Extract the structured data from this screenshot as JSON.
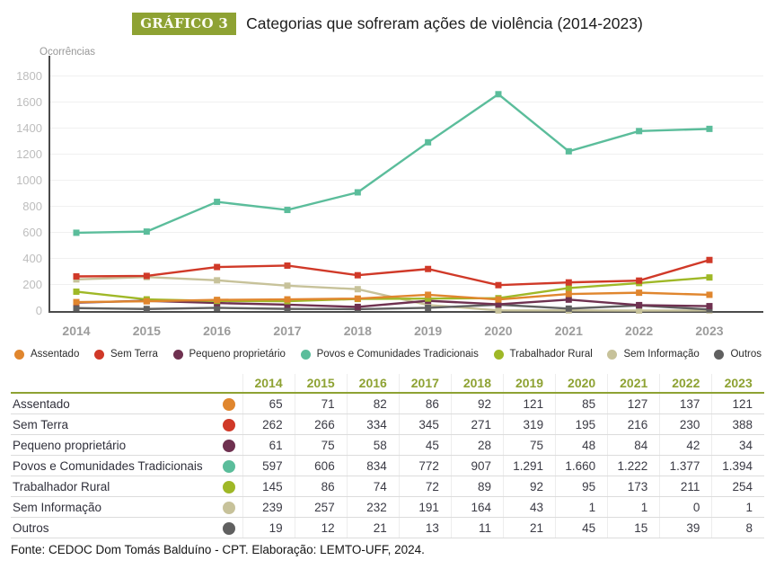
{
  "header": {
    "badge": "GRÁFICO 3",
    "title": "Categorias que sofreram ações de violência (2014-2023)"
  },
  "chart_data": {
    "type": "line",
    "title": "Categorias que sofreram ações de violência (2014-2023)",
    "ylabel": "Ocorrências",
    "xlabel": "",
    "x_categories": [
      "2014",
      "2015",
      "2016",
      "2017",
      "2018",
      "2019",
      "2020",
      "2021",
      "2022",
      "2023"
    ],
    "ylim": [
      0,
      1800
    ],
    "ytick_step": 200,
    "grid": "horizontal",
    "legend_position": "bottom",
    "marker": "square",
    "series": [
      {
        "name": "Assentado",
        "slug": "assentado",
        "color": "#E0862E",
        "values": [
          65,
          71,
          82,
          86,
          92,
          121,
          85,
          127,
          137,
          121
        ]
      },
      {
        "name": "Sem Terra",
        "slug": "sem-terra",
        "color": "#D03928",
        "values": [
          262,
          266,
          334,
          345,
          271,
          319,
          195,
          216,
          230,
          388
        ]
      },
      {
        "name": "Pequeno proprietário",
        "slug": "pequeno-proprietario",
        "color": "#6F3150",
        "values": [
          61,
          75,
          58,
          45,
          28,
          75,
          48,
          84,
          42,
          34
        ]
      },
      {
        "name": "Povos e Comunidades Tradicionais",
        "slug": "povos-e-comunidades-tradicionais",
        "color": "#5BBD9B",
        "values": [
          597,
          606,
          834,
          772,
          907,
          1291,
          1660,
          1222,
          1377,
          1394
        ]
      },
      {
        "name": "Trabalhador Rural",
        "slug": "trabalhador-rural",
        "color": "#9FB827",
        "values": [
          145,
          86,
          74,
          72,
          89,
          92,
          95,
          173,
          211,
          254
        ]
      },
      {
        "name": "Sem Informação",
        "slug": "sem-informacao",
        "color": "#C7C29A",
        "values": [
          239,
          257,
          232,
          191,
          164,
          43,
          1,
          1,
          0,
          1
        ]
      },
      {
        "name": "Outros",
        "slug": "outros",
        "color": "#606060",
        "values": [
          19,
          12,
          21,
          13,
          11,
          21,
          45,
          15,
          39,
          8
        ]
      }
    ],
    "draw_order": [
      5,
      6,
      2,
      4,
      0,
      1,
      3
    ]
  },
  "table": {
    "year_columns": [
      "2014",
      "2015",
      "2016",
      "2017",
      "2018",
      "2019",
      "2020",
      "2021",
      "2022",
      "2023"
    ],
    "rows": [
      {
        "label": "Assentado",
        "color": "#E0862E",
        "values": [
          "65",
          "71",
          "82",
          "86",
          "92",
          "121",
          "85",
          "127",
          "137",
          "121"
        ]
      },
      {
        "label": "Sem Terra",
        "color": "#D03928",
        "values": [
          "262",
          "266",
          "334",
          "345",
          "271",
          "319",
          "195",
          "216",
          "230",
          "388"
        ]
      },
      {
        "label": "Pequeno proprietário",
        "color": "#6F3150",
        "values": [
          "61",
          "75",
          "58",
          "45",
          "28",
          "75",
          "48",
          "84",
          "42",
          "34"
        ]
      },
      {
        "label": "Povos e Comunidades Tradicionais",
        "color": "#5BBD9B",
        "values": [
          "597",
          "606",
          "834",
          "772",
          "907",
          "1.291",
          "1.660",
          "1.222",
          "1.377",
          "1.394"
        ]
      },
      {
        "label": "Trabalhador Rural",
        "color": "#9FB827",
        "values": [
          "145",
          "86",
          "74",
          "72",
          "89",
          "92",
          "95",
          "173",
          "211",
          "254"
        ]
      },
      {
        "label": "Sem Informação",
        "color": "#C7C29A",
        "values": [
          "239",
          "257",
          "232",
          "191",
          "164",
          "43",
          "1",
          "1",
          "0",
          "1"
        ]
      },
      {
        "label": "Outros",
        "color": "#606060",
        "values": [
          "19",
          "12",
          "21",
          "13",
          "11",
          "21",
          "45",
          "15",
          "39",
          "8"
        ]
      }
    ]
  },
  "footer": {
    "source": "Fonte: CEDOC Dom Tomás Balduíno - CPT. Elaboração: LEMTO-UFF, 2024."
  },
  "theme": {
    "accent_olive": "#8EA233",
    "axis_color": "#4A4A4A",
    "grid_color": "#F0F0F0",
    "tick_color": "#BDBDBD"
  }
}
